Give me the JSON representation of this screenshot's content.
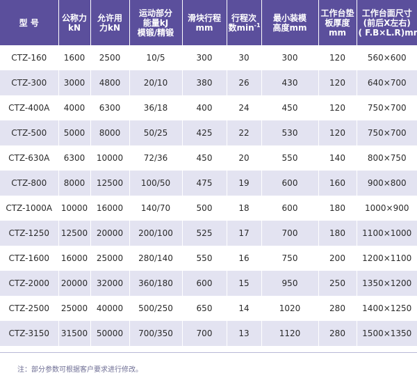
{
  "header": {
    "columns": [
      [
        "型  号"
      ],
      [
        "公称力",
        "kN"
      ],
      [
        "允许用",
        "力kN"
      ],
      [
        "运动部分",
        "能量kJ",
        "模锻/精锻"
      ],
      [
        "滑块行程",
        "mm"
      ],
      [
        "行程次",
        "数min"
      ],
      [
        "最小装模",
        "高度mm"
      ],
      [
        "工作台垫",
        "板厚度",
        "mm"
      ],
      [
        "工作台面尺寸",
        "(前后X左右)",
        "( F.B×L.R)mm"
      ]
    ],
    "strokes_sup": "-1"
  },
  "rows": [
    [
      "CTZ-160",
      "1600",
      "2500",
      "10/5",
      "300",
      "30",
      "300",
      "120",
      "560×600"
    ],
    [
      "CTZ-300",
      "3000",
      "4800",
      "20/10",
      "380",
      "26",
      "430",
      "120",
      "640×700"
    ],
    [
      "CTZ-400A",
      "4000",
      "6300",
      "36/18",
      "400",
      "24",
      "450",
      "120",
      "750×700"
    ],
    [
      "CTZ-500",
      "5000",
      "8000",
      "50/25",
      "425",
      "22",
      "530",
      "120",
      "750×700"
    ],
    [
      "CTZ-630A",
      "6300",
      "10000",
      "72/36",
      "450",
      "20",
      "550",
      "140",
      "800×750"
    ],
    [
      "CTZ-800",
      "8000",
      "12500",
      "100/50",
      "475",
      "19",
      "600",
      "160",
      "900×800"
    ],
    [
      "CTZ-1000A",
      "10000",
      "16000",
      "140/70",
      "500",
      "18",
      "600",
      "180",
      "1000×900"
    ],
    [
      "CTZ-1250",
      "12500",
      "20000",
      "200/100",
      "525",
      "17",
      "700",
      "180",
      "1100×1000"
    ],
    [
      "CTZ-1600",
      "16000",
      "25000",
      "280/140",
      "550",
      "16",
      "750",
      "200",
      "1200×1100"
    ],
    [
      "CTZ-2000",
      "20000",
      "32000",
      "360/180",
      "600",
      "15",
      "950",
      "250",
      "1350×1200"
    ],
    [
      "CTZ-2500",
      "25000",
      "40000",
      "500/250",
      "650",
      "14",
      "1020",
      "280",
      "1400×1250"
    ],
    [
      "CTZ-3150",
      "31500",
      "50000",
      "700/350",
      "700",
      "13",
      "1120",
      "280",
      "1500×1350"
    ]
  ],
  "note": "注：部分参数可根据客户要求进行修改。",
  "colors": {
    "header_bg": "#5b4f9c",
    "row_alt_bg": "#e3e3f1",
    "note_text": "#6f6f95"
  }
}
